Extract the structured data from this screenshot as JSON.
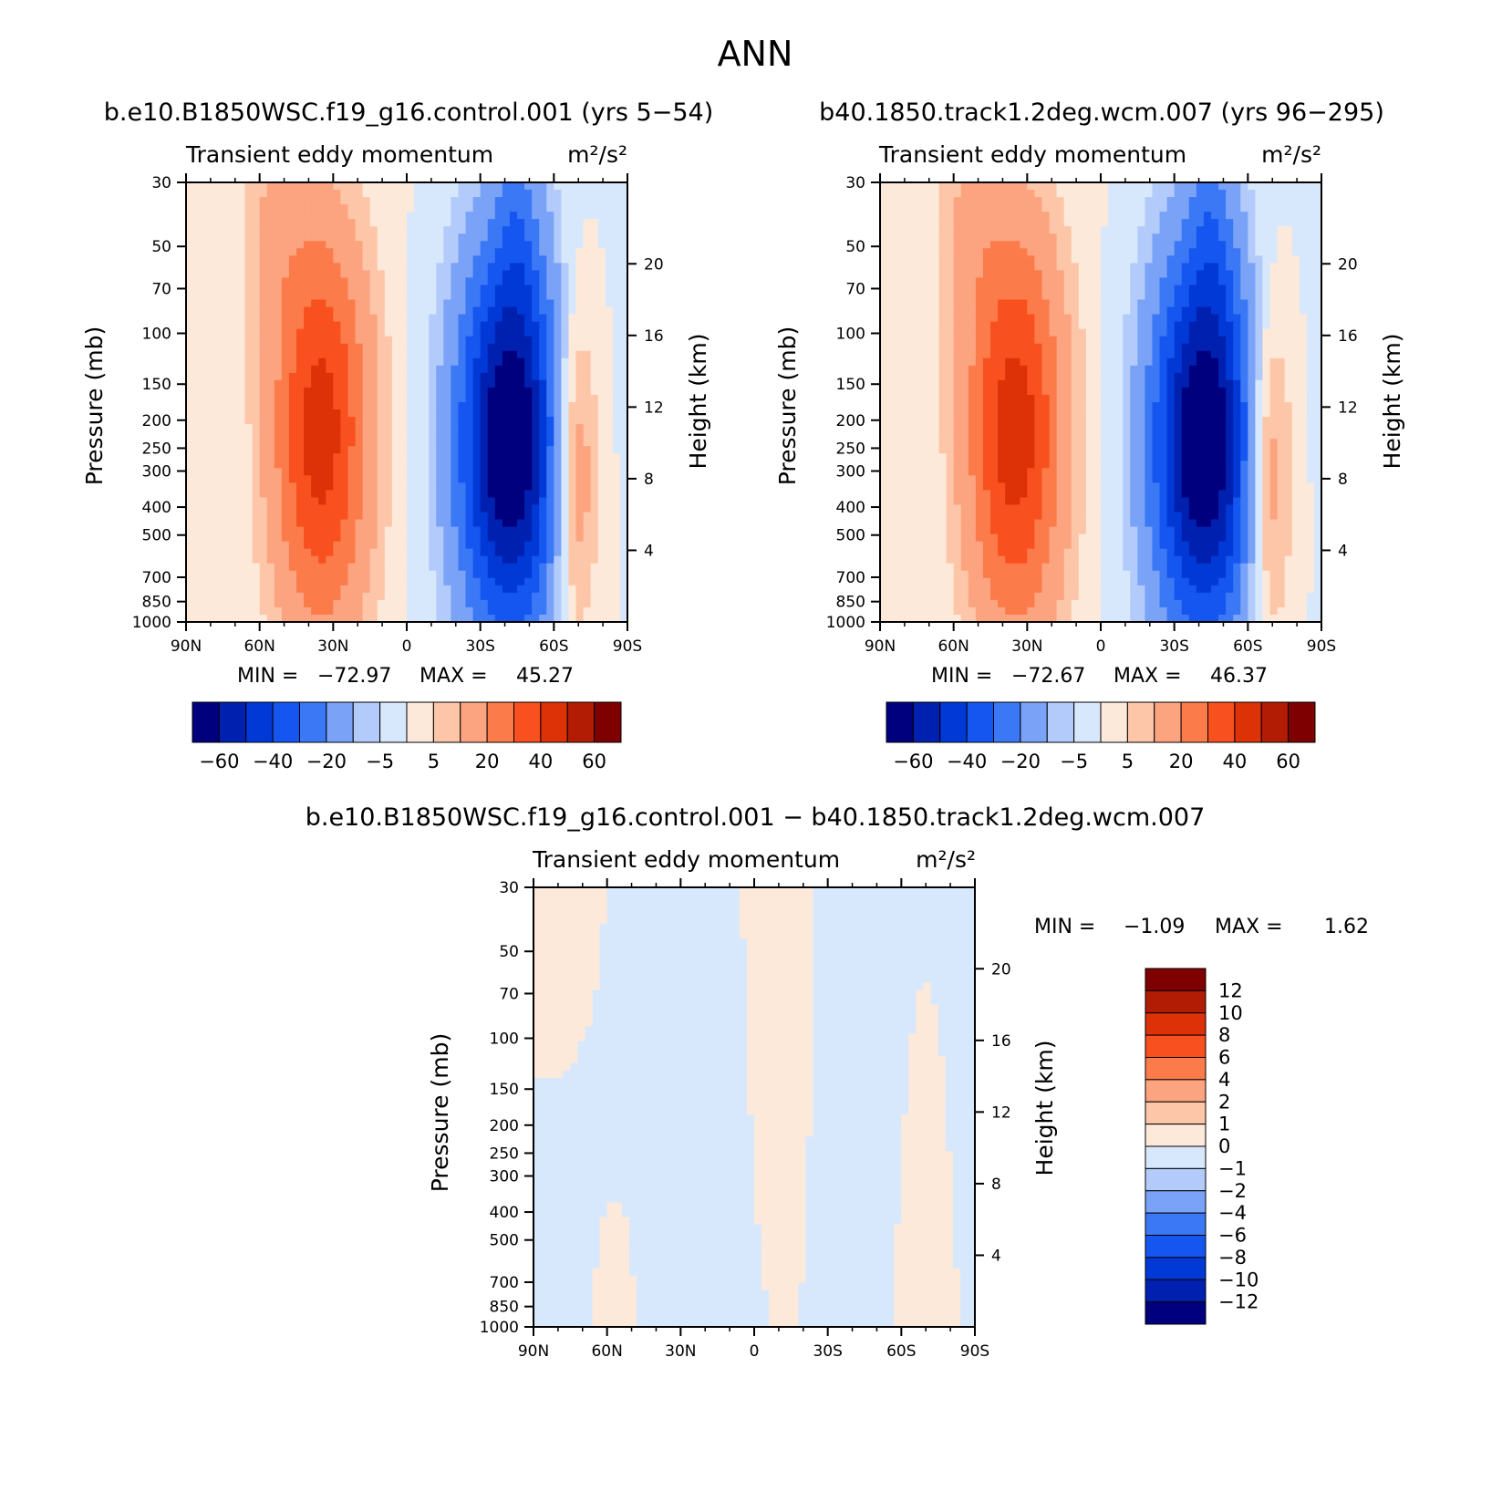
{
  "figure": {
    "title": "ANN",
    "diff_title": "b.e10.B1850WSC.f19_g16.control.001 − b40.1850.track1.2deg.wcm.007"
  },
  "colors": {
    "abs_levels": [
      "#00007f",
      "#0021b0",
      "#0039d6",
      "#1656f0",
      "#3b78f5",
      "#7aa2f7",
      "#b2cbfa",
      "#d8e8fc",
      "#fde9d9",
      "#fdc6a8",
      "#fca380",
      "#fc7b4a",
      "#f9501f",
      "#dd3208",
      "#b31c04",
      "#7f0000"
    ],
    "diff_levels": [
      "#00007f",
      "#0021b0",
      "#0039d6",
      "#1656f0",
      "#3b78f5",
      "#7aa2f7",
      "#b2cbfa",
      "#d8e8fc",
      "#fde9d9",
      "#fdc6a8",
      "#fca380",
      "#fc7b4a",
      "#f9501f",
      "#dd3208",
      "#b31c04",
      "#7f0000"
    ]
  },
  "chart_data": [
    {
      "type": "heatmap",
      "case_title": "b.e10.B1850WSC.f19_g16.control.001 (yrs 5−54)",
      "subtitle": "Transient eddy momentum",
      "units": "m²/s²",
      "ylabel": "Pressure (mb)",
      "ylabel_right": "Height (km)",
      "x_ticks": [
        "90N",
        "60N",
        "30N",
        "0",
        "30S",
        "60S",
        "90S"
      ],
      "xlim": [
        90,
        -90
      ],
      "y_ticks": [
        30,
        50,
        70,
        100,
        150,
        200,
        250,
        300,
        400,
        500,
        700,
        850,
        1000
      ],
      "ylim": [
        1000,
        30
      ],
      "y_scale": "log",
      "right_ticks": [
        20,
        16,
        12,
        8,
        4
      ],
      "min_label": "MIN =",
      "min": "−72.97",
      "max_label": "MAX =",
      "max": "45.27",
      "colorbar_labels": [
        "−60",
        "−40",
        "−20",
        "−5",
        "5",
        "20",
        "40",
        "60"
      ],
      "features": [
        {
          "lat": 35,
          "p": 220,
          "value": 45,
          "lat_width": 14,
          "p_spread": 1.15
        },
        {
          "lat": -42,
          "p": 240,
          "value": -73,
          "lat_width": 15,
          "p_spread": 1.1
        },
        {
          "lat": -68,
          "p": 290,
          "value": 25,
          "lat_width": 7,
          "p_spread": 0.95
        },
        {
          "lat": 55,
          "p": 40,
          "value": 8,
          "lat_width": 10,
          "p_spread": 0.6
        },
        {
          "lat": -45,
          "p": 40,
          "value": -12,
          "lat_width": 6,
          "p_spread": 0.6
        }
      ]
    },
    {
      "type": "heatmap",
      "case_title": "b40.1850.track1.2deg.wcm.007 (yrs 96−295)",
      "subtitle": "Transient eddy momentum",
      "units": "m²/s²",
      "ylabel": "Pressure (mb)",
      "ylabel_right": "Height (km)",
      "x_ticks": [
        "90N",
        "60N",
        "30N",
        "0",
        "30S",
        "60S",
        "90S"
      ],
      "xlim": [
        90,
        -90
      ],
      "y_ticks": [
        30,
        50,
        70,
        100,
        150,
        200,
        250,
        300,
        400,
        500,
        700,
        850,
        1000
      ],
      "ylim": [
        1000,
        30
      ],
      "y_scale": "log",
      "right_ticks": [
        20,
        16,
        12,
        8,
        4
      ],
      "min_label": "MIN =",
      "min": "−72.67",
      "max_label": "MAX =",
      "max": "46.37",
      "colorbar_labels": [
        "−60",
        "−40",
        "−20",
        "−5",
        "5",
        "20",
        "40",
        "60"
      ],
      "features": [
        {
          "lat": 35,
          "p": 220,
          "value": 46,
          "lat_width": 14,
          "p_spread": 1.15
        },
        {
          "lat": -42,
          "p": 240,
          "value": -73,
          "lat_width": 15,
          "p_spread": 1.1
        },
        {
          "lat": -68,
          "p": 290,
          "value": 24,
          "lat_width": 7,
          "p_spread": 0.95
        },
        {
          "lat": 55,
          "p": 40,
          "value": 8,
          "lat_width": 10,
          "p_spread": 0.6
        },
        {
          "lat": -45,
          "p": 40,
          "value": -12,
          "lat_width": 6,
          "p_spread": 0.6
        }
      ]
    },
    {
      "type": "heatmap",
      "subtitle": "Transient eddy momentum",
      "units": "m²/s²",
      "ylabel": "Pressure (mb)",
      "ylabel_right": "Height (km)",
      "x_ticks": [
        "90N",
        "60N",
        "30N",
        "0",
        "30S",
        "60S",
        "90S"
      ],
      "xlim": [
        90,
        -90
      ],
      "y_ticks": [
        30,
        50,
        70,
        100,
        150,
        200,
        250,
        300,
        400,
        500,
        700,
        850,
        1000
      ],
      "ylim": [
        1000,
        30
      ],
      "y_scale": "log",
      "right_ticks": [
        20,
        16,
        12,
        8,
        4
      ],
      "min_label": "MIN =",
      "min": "−1.09",
      "max_label": "MAX =",
      "max": "1.62",
      "colorbar_labels": [
        "12",
        "10",
        "8",
        "6",
        "4",
        "2",
        "1",
        "0",
        "−1",
        "−2",
        "−4",
        "−6",
        "−8",
        "−10",
        "−12"
      ],
      "features": [
        {
          "lat": 20,
          "p": 250,
          "value": -0.8,
          "lat_width": 25,
          "p_spread": 1.6
        },
        {
          "lat": 78,
          "p": 40,
          "value": 0.9,
          "lat_width": 8,
          "p_spread": 0.5
        },
        {
          "lat": -5,
          "p": 150,
          "value": 0.7,
          "lat_width": 12,
          "p_spread": 1.5
        },
        {
          "lat": -50,
          "p": 120,
          "value": -0.7,
          "lat_width": 12,
          "p_spread": 1.3
        },
        {
          "lat": -65,
          "p": 400,
          "value": 0.6,
          "lat_width": 6,
          "p_spread": 1.3
        },
        {
          "lat": 55,
          "p": 700,
          "value": 0.5,
          "lat_width": 6,
          "p_spread": 0.6
        }
      ]
    }
  ]
}
